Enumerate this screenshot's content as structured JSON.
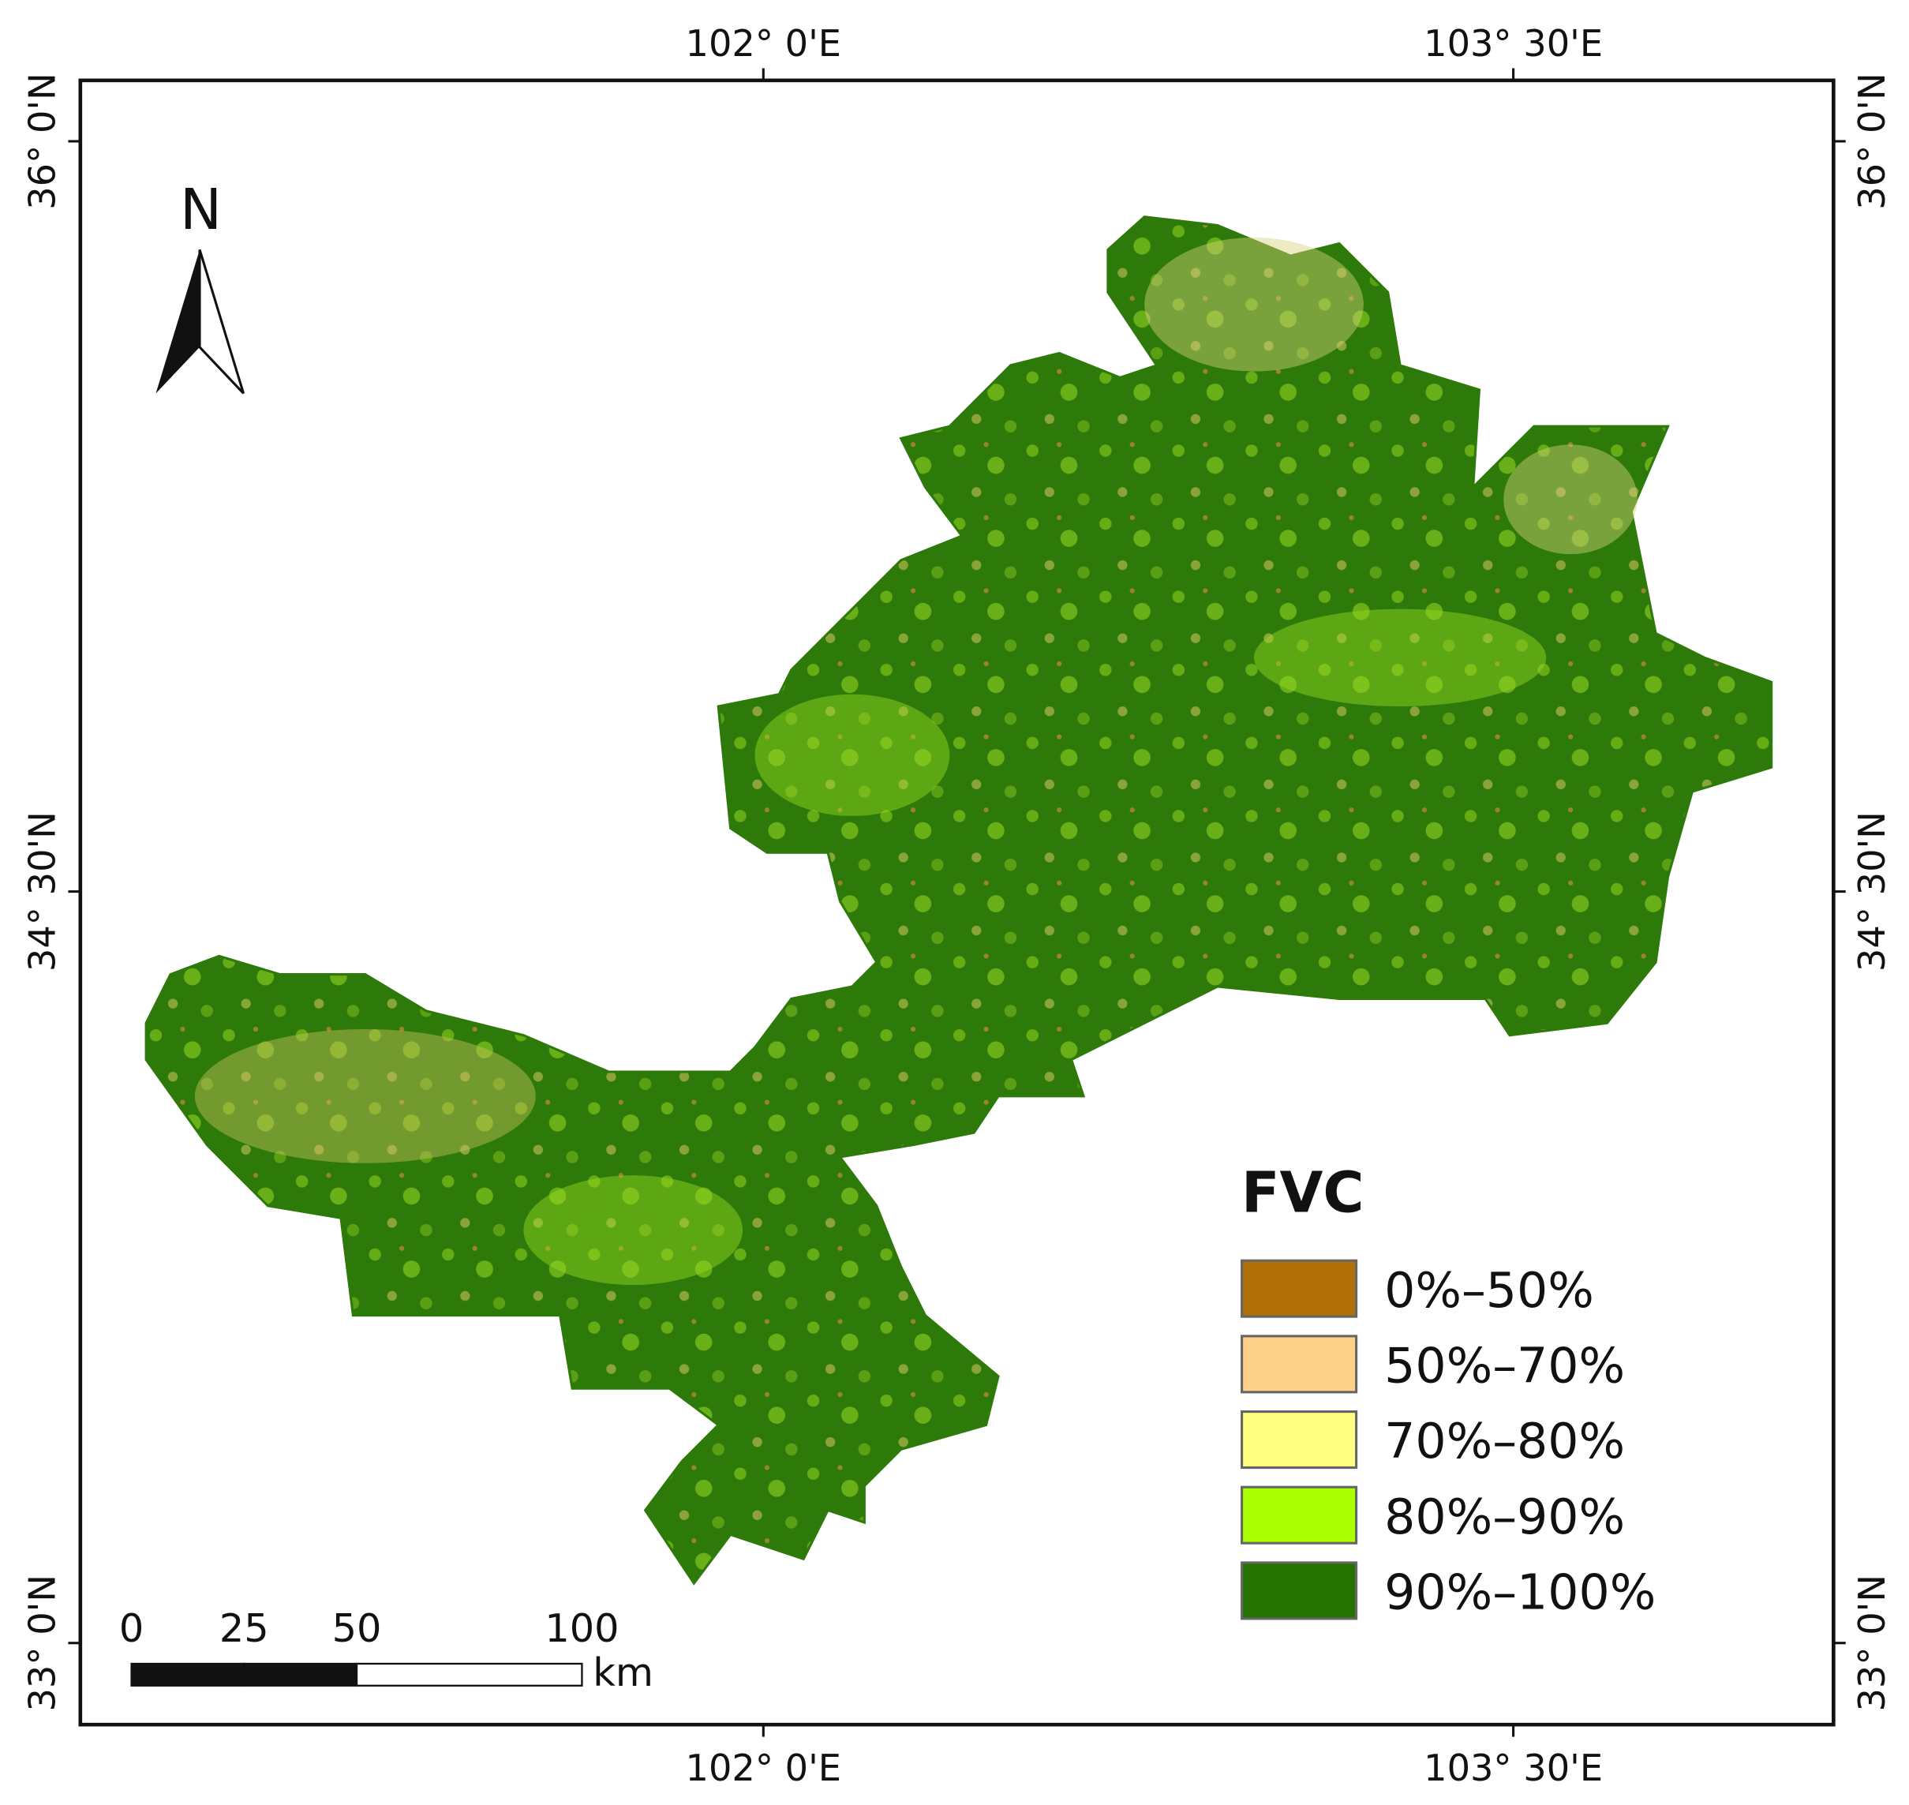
{
  "map": {
    "lon_labels": [
      "102° 0'E",
      "103° 30'E"
    ],
    "lat_labels": [
      "36° 0'N",
      "34° 30'N",
      "33° 0'N"
    ],
    "north_label": "N",
    "scale_bar": {
      "ticks": [
        0,
        25,
        50,
        100
      ],
      "unit": "km"
    },
    "legend": {
      "title": "FVC",
      "items": [
        {
          "label": "0%–50%",
          "color": "#b06f07"
        },
        {
          "label": "50%–70%",
          "color": "#fdd28b"
        },
        {
          "label": "70%–80%",
          "color": "#ffff80"
        },
        {
          "label": "80%–90%",
          "color": "#aaff00"
        },
        {
          "label": "90%–100%",
          "color": "#267300"
        }
      ]
    }
  }
}
